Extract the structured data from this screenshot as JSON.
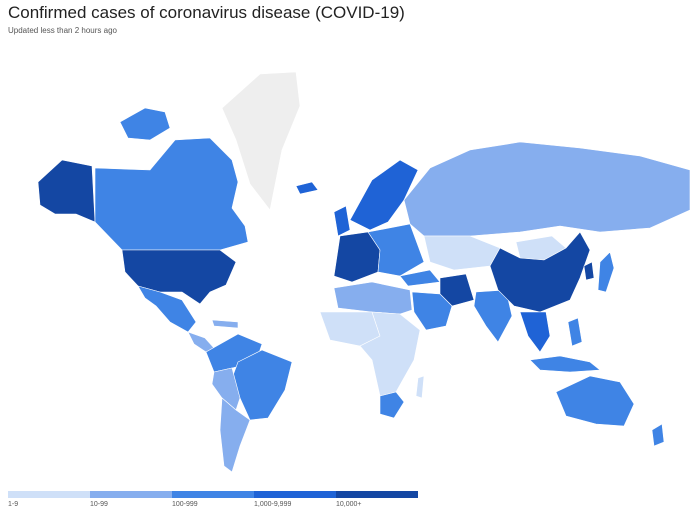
{
  "header": {
    "title": "Confirmed cases of coronavirus disease (COVID-19)",
    "subtitle": "Updated less than 2 hours ago"
  },
  "colors": {
    "no_data": "#eeeeee",
    "bin_1_9": "#cfe0f8",
    "bin_10_99": "#86aeee",
    "bin_100_999": "#3f84e5",
    "bin_1000_9999": "#1f63d6",
    "bin_10000_plus": "#1447a3",
    "land_outline": "#ffffff"
  },
  "legend": {
    "items": [
      {
        "label": "1-9",
        "color": "#cfe0f8"
      },
      {
        "label": "10-99",
        "color": "#86aeee"
      },
      {
        "label": "100-999",
        "color": "#3f84e5"
      },
      {
        "label": "1,000-9,999",
        "color": "#1f63d6"
      },
      {
        "label": "10,000+",
        "color": "#1447a3"
      }
    ]
  }
}
